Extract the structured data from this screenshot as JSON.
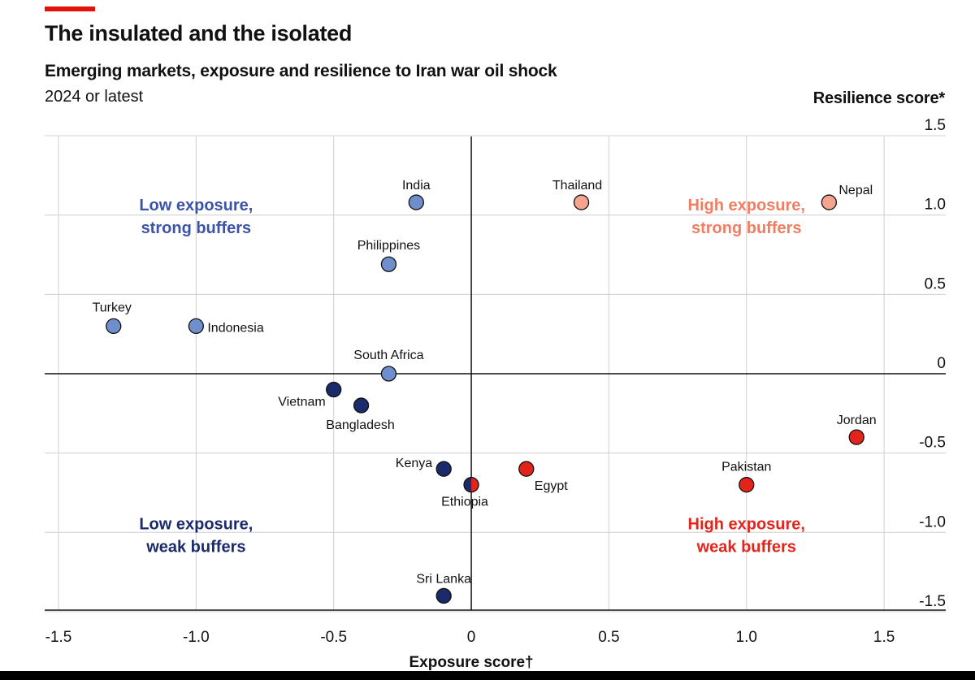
{
  "header": {
    "title": "The insulated and the isolated",
    "subtitle": "Emerging markets, exposure and resilience to Iran war oil shock",
    "period": "2024 or latest"
  },
  "colors": {
    "accent": "#e3120b",
    "strong_low": "#6f8fcc",
    "strong_high": "#f4a48f",
    "weak_low": "#1b2a6b",
    "weak_high": "#e3241b"
  },
  "chart_data": {
    "type": "scatter",
    "title": "The insulated and the isolated",
    "subtitle": "Emerging markets, exposure and resilience to Iran war oil shock",
    "xlabel": "Exposure score†",
    "ylabel": "Resilience score*",
    "xlim": [
      -1.5,
      1.7
    ],
    "ylim": [
      -1.5,
      1.5
    ],
    "x_ticks": [
      -1.5,
      -1.0,
      -0.5,
      0,
      0.5,
      1.0,
      1.5
    ],
    "x_tick_labels": [
      "-1.5",
      "-1.0",
      "-0.5",
      "0",
      "0.5",
      "1.0",
      "1.5"
    ],
    "y_ticks": [
      1.5,
      1.0,
      0.5,
      0,
      -0.5,
      -1.0,
      -1.5
    ],
    "y_tick_labels": [
      "1.5",
      "1.0",
      "0.5",
      "0",
      "-0.5",
      "-1.0",
      "-1.5"
    ],
    "grid": true,
    "quadrant_labels": [
      {
        "lines": [
          "Low exposure,",
          "strong buffers"
        ],
        "quadrant": "top-left"
      },
      {
        "lines": [
          "High exposure,",
          "strong buffers"
        ],
        "quadrant": "top-right"
      },
      {
        "lines": [
          "Low exposure,",
          "weak buffers"
        ],
        "quadrant": "bottom-left"
      },
      {
        "lines": [
          "High exposure,",
          "weak buffers"
        ],
        "quadrant": "bottom-right"
      }
    ],
    "points": [
      {
        "label": "India",
        "x": -0.2,
        "y": 1.08
      },
      {
        "label": "Thailand",
        "x": 0.4,
        "y": 1.08
      },
      {
        "label": "Nepal",
        "x": 1.3,
        "y": 1.08
      },
      {
        "label": "Philippines",
        "x": -0.3,
        "y": 0.69
      },
      {
        "label": "Turkey",
        "x": -1.3,
        "y": 0.3
      },
      {
        "label": "Indonesia",
        "x": -1.0,
        "y": 0.3
      },
      {
        "label": "South Africa",
        "x": -0.3,
        "y": 0.0
      },
      {
        "label": "Vietnam",
        "x": -0.5,
        "y": -0.1
      },
      {
        "label": "Bangladesh",
        "x": -0.4,
        "y": -0.2
      },
      {
        "label": "Jordan",
        "x": 1.4,
        "y": -0.4
      },
      {
        "label": "Kenya",
        "x": -0.1,
        "y": -0.6
      },
      {
        "label": "Egypt",
        "x": 0.2,
        "y": -0.6
      },
      {
        "label": "Ethiopia",
        "x": 0.0,
        "y": -0.7
      },
      {
        "label": "Pakistan",
        "x": 1.0,
        "y": -0.7
      },
      {
        "label": "Sri Lanka",
        "x": -0.1,
        "y": -1.4
      }
    ]
  }
}
